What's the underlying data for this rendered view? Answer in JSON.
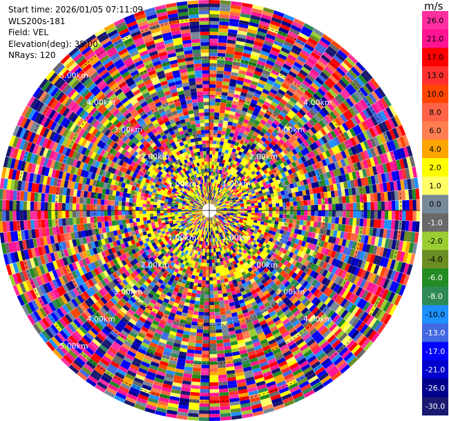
{
  "header": {
    "start_time": "Start time: 2026/01/05 07:11:09",
    "station": "WLS200s-181",
    "field": "Field: VEL",
    "elevation": "Elevation(deg): 35.00",
    "nrays": "NRays: 120"
  },
  "colorbar": {
    "unit": "m/s",
    "levels": [
      {
        "label": "26.0",
        "color": "#ff2fa0"
      },
      {
        "label": "21.0",
        "color": "#ff1493"
      },
      {
        "label": "17.0",
        "color": "#ff0000"
      },
      {
        "label": "13.0",
        "color": "#ff3030"
      },
      {
        "label": "10.0",
        "color": "#ff4500"
      },
      {
        "label": "8.0",
        "color": "#ff6347"
      },
      {
        "label": "6.0",
        "color": "#ff7f50"
      },
      {
        "label": "4.0",
        "color": "#ffa500"
      },
      {
        "label": "2.0",
        "color": "#ffff00"
      },
      {
        "label": "1.0",
        "color": "#ffff66"
      },
      {
        "label": "0.0",
        "color": "#778899"
      },
      {
        "label": "-1.0",
        "color": "#696969"
      },
      {
        "label": "-2.0",
        "color": "#9acd32"
      },
      {
        "label": "-4.0",
        "color": "#6b8e23"
      },
      {
        "label": "-6.0",
        "color": "#228b22"
      },
      {
        "label": "-8.0",
        "color": "#2e8b57"
      },
      {
        "label": "-10.0",
        "color": "#1e90ff"
      },
      {
        "label": "-13.0",
        "color": "#4169e1"
      },
      {
        "label": "-17.0",
        "color": "#0000ff"
      },
      {
        "label": "-21.0",
        "color": "#0000cd"
      },
      {
        "label": "-26.0",
        "color": "#00008b"
      },
      {
        "label": "-30.0",
        "color": "#191970"
      }
    ]
  },
  "chart_data": {
    "type": "heatmap",
    "projection": "polar",
    "field": "VEL",
    "n_rays": 120,
    "range_rings_km": [
      1,
      2,
      3,
      4,
      5
    ],
    "range_ring_labels": [
      "1.00km",
      "2.00km",
      "3.00km",
      "4.00km",
      "5.00km"
    ],
    "max_range_km": 5.5,
    "value_range": [
      -30,
      26
    ],
    "unit": "m/s"
  }
}
